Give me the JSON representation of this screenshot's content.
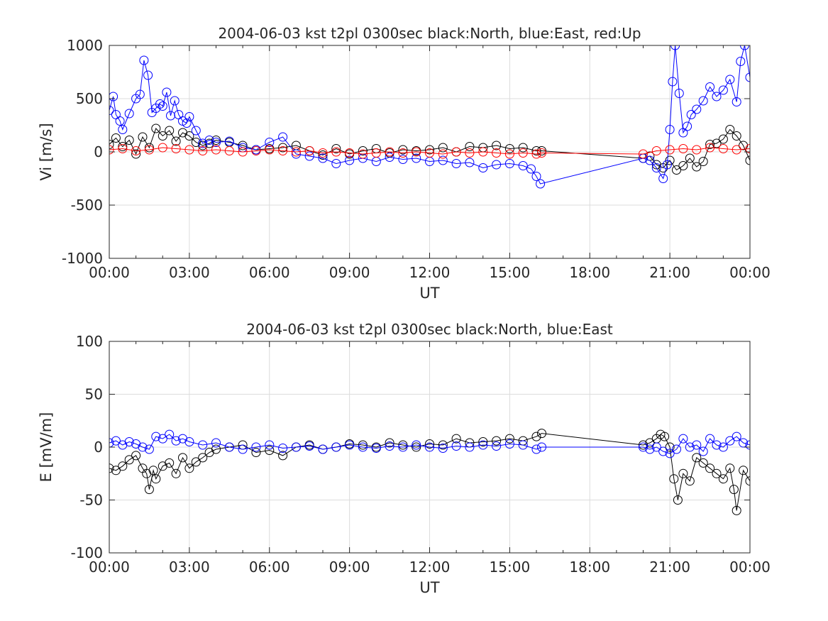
{
  "chart_data": [
    {
      "type": "line",
      "title": "2004-06-03 kst t2pl 0300sec black:North, blue:East, red:Up",
      "xlabel": "UT",
      "ylabel": "Vi [m/s]",
      "xlim": [
        0,
        24
      ],
      "ylim": [
        -1000,
        1000
      ],
      "xticks": [
        "00:00",
        "03:00",
        "06:00",
        "09:00",
        "12:00",
        "15:00",
        "18:00",
        "21:00",
        "00:00"
      ],
      "yticks": [
        "-1000",
        "-500",
        "0",
        "500",
        "1000"
      ],
      "grid": true,
      "marker": "circle",
      "colors": {
        "North": "#000000",
        "East": "#0000ff",
        "Up": "#ff0000"
      },
      "series": [
        {
          "name": "North",
          "x": [
            0.0,
            0.25,
            0.5,
            0.75,
            1.0,
            1.25,
            1.5,
            1.75,
            2.0,
            2.25,
            2.5,
            2.75,
            3.0,
            3.25,
            3.5,
            3.75,
            4.0,
            4.5,
            5.0,
            5.5,
            6.0,
            6.5,
            7.0,
            7.5,
            8.0,
            8.5,
            9.0,
            9.5,
            10.0,
            10.5,
            11.0,
            11.5,
            12.0,
            12.5,
            13.0,
            13.5,
            14.0,
            14.5,
            15.0,
            15.5,
            16.0,
            16.2,
            20.0,
            20.25,
            20.5,
            20.75,
            21.0,
            21.25,
            21.5,
            21.75,
            22.0,
            22.25,
            22.5,
            22.75,
            23.0,
            23.25,
            23.5,
            23.75,
            24.0
          ],
          "y": [
            70,
            130,
            50,
            110,
            -20,
            140,
            40,
            220,
            150,
            200,
            100,
            180,
            150,
            90,
            60,
            80,
            110,
            90,
            60,
            20,
            30,
            40,
            60,
            10,
            -30,
            30,
            -20,
            10,
            30,
            -10,
            20,
            10,
            20,
            40,
            0,
            50,
            40,
            60,
            30,
            40,
            10,
            10,
            -60,
            -40,
            -120,
            -150,
            -80,
            -170,
            -130,
            -60,
            -140,
            -90,
            70,
            80,
            120,
            210,
            150,
            60,
            -80
          ]
        },
        {
          "name": "East",
          "x": [
            0.0,
            0.15,
            0.25,
            0.4,
            0.5,
            0.75,
            1.0,
            1.15,
            1.3,
            1.45,
            1.6,
            1.75,
            1.9,
            2.0,
            2.15,
            2.3,
            2.45,
            2.6,
            2.75,
            2.9,
            3.0,
            3.25,
            3.5,
            3.75,
            4.0,
            4.5,
            5.0,
            5.5,
            6.0,
            6.5,
            7.0,
            7.5,
            8.0,
            8.5,
            9.0,
            9.5,
            10.0,
            10.5,
            11.0,
            11.5,
            12.0,
            12.5,
            13.0,
            13.5,
            14.0,
            14.5,
            15.0,
            15.5,
            15.8,
            16.0,
            16.15,
            20.0,
            20.25,
            20.5,
            20.75,
            20.9,
            21.0,
            21.1,
            21.2,
            21.35,
            21.5,
            21.65,
            21.8,
            22.0,
            22.25,
            22.5,
            22.75,
            23.0,
            23.25,
            23.5,
            23.65,
            23.8,
            24.0
          ],
          "y": [
            390,
            520,
            350,
            290,
            210,
            360,
            500,
            540,
            860,
            720,
            370,
            410,
            450,
            430,
            560,
            340,
            480,
            350,
            290,
            270,
            330,
            200,
            80,
            110,
            90,
            100,
            40,
            20,
            90,
            140,
            -20,
            -40,
            -60,
            -110,
            -80,
            -60,
            -90,
            -50,
            -70,
            -60,
            -90,
            -80,
            -110,
            -100,
            -150,
            -120,
            -110,
            -130,
            -160,
            -230,
            -300,
            -60,
            -80,
            -150,
            -250,
            -120,
            210,
            660,
            1000,
            550,
            180,
            240,
            350,
            400,
            480,
            610,
            520,
            580,
            680,
            470,
            850,
            1000,
            700
          ]
        },
        {
          "name": "Up",
          "x": [
            0.0,
            0.5,
            1.0,
            1.5,
            2.0,
            2.5,
            3.0,
            3.5,
            4.0,
            4.5,
            5.0,
            5.5,
            6.0,
            6.5,
            7.0,
            7.5,
            8.0,
            8.5,
            9.0,
            9.5,
            10.0,
            10.5,
            11.0,
            11.5,
            12.0,
            12.5,
            13.0,
            13.5,
            14.0,
            14.5,
            15.0,
            15.5,
            16.0,
            16.2,
            20.0,
            20.5,
            21.0,
            21.5,
            22.0,
            22.5,
            23.0,
            23.5,
            24.0
          ],
          "y": [
            20,
            30,
            10,
            20,
            40,
            30,
            20,
            10,
            20,
            10,
            0,
            10,
            20,
            10,
            0,
            10,
            -10,
            0,
            -10,
            -20,
            -10,
            0,
            -10,
            0,
            -10,
            -20,
            0,
            -10,
            0,
            -10,
            -20,
            -10,
            -20,
            -10,
            -20,
            10,
            20,
            30,
            20,
            40,
            30,
            20,
            30
          ]
        }
      ]
    },
    {
      "type": "line",
      "title": "2004-06-03 kst t2pl 0300sec black:North, blue:East",
      "xlabel": "UT",
      "ylabel": "E [mV/m]",
      "xlim": [
        0,
        24
      ],
      "ylim": [
        -100,
        100
      ],
      "xticks": [
        "00:00",
        "03:00",
        "06:00",
        "09:00",
        "12:00",
        "15:00",
        "18:00",
        "21:00",
        "00:00"
      ],
      "yticks": [
        "-100",
        "-50",
        "0",
        "50",
        "100"
      ],
      "grid": true,
      "marker": "circle",
      "colors": {
        "North": "#000000",
        "East": "#0000ff"
      },
      "series": [
        {
          "name": "North",
          "x": [
            0.0,
            0.25,
            0.5,
            0.75,
            1.0,
            1.25,
            1.4,
            1.5,
            1.65,
            1.75,
            2.0,
            2.25,
            2.5,
            2.75,
            3.0,
            3.25,
            3.5,
            3.75,
            4.0,
            4.5,
            5.0,
            5.5,
            6.0,
            6.5,
            7.0,
            7.5,
            8.0,
            8.5,
            9.0,
            9.5,
            10.0,
            10.5,
            11.0,
            11.5,
            12.0,
            12.5,
            13.0,
            13.5,
            14.0,
            14.5,
            15.0,
            15.5,
            16.0,
            16.2,
            20.0,
            20.25,
            20.5,
            20.65,
            20.8,
            21.0,
            21.15,
            21.3,
            21.5,
            21.75,
            22.0,
            22.25,
            22.5,
            22.75,
            23.0,
            23.25,
            23.4,
            23.5,
            23.75,
            24.0
          ],
          "y": [
            -20,
            -22,
            -18,
            -12,
            -8,
            -20,
            -25,
            -40,
            -22,
            -30,
            -18,
            -15,
            -25,
            -10,
            -20,
            -14,
            -10,
            -5,
            -2,
            0,
            2,
            -5,
            -3,
            -8,
            0,
            2,
            -2,
            0,
            3,
            2,
            0,
            4,
            2,
            0,
            3,
            2,
            8,
            4,
            5,
            6,
            8,
            6,
            10,
            13,
            2,
            4,
            8,
            12,
            10,
            0,
            -30,
            -50,
            -25,
            -32,
            -10,
            -15,
            -20,
            -25,
            -30,
            -20,
            -40,
            -60,
            -22,
            -32
          ]
        },
        {
          "name": "East",
          "x": [
            0.0,
            0.25,
            0.5,
            0.75,
            1.0,
            1.25,
            1.5,
            1.75,
            2.0,
            2.25,
            2.5,
            2.75,
            3.0,
            3.5,
            4.0,
            4.5,
            5.0,
            5.5,
            6.0,
            6.5,
            7.0,
            7.5,
            8.0,
            8.5,
            9.0,
            9.5,
            10.0,
            10.5,
            11.0,
            11.5,
            12.0,
            12.5,
            13.0,
            13.5,
            14.0,
            14.5,
            15.0,
            15.5,
            16.0,
            16.2,
            20.0,
            20.25,
            20.5,
            20.75,
            21.0,
            21.25,
            21.5,
            21.75,
            22.0,
            22.25,
            22.5,
            22.75,
            23.0,
            23.25,
            23.5,
            23.75,
            24.0
          ],
          "y": [
            4,
            6,
            2,
            5,
            3,
            0,
            -2,
            10,
            8,
            12,
            6,
            8,
            5,
            2,
            4,
            0,
            -2,
            0,
            2,
            -1,
            0,
            1,
            -2,
            0,
            2,
            0,
            -1,
            1,
            0,
            2,
            0,
            -1,
            1,
            0,
            2,
            1,
            3,
            2,
            -2,
            0,
            0,
            -2,
            0,
            -4,
            -6,
            -2,
            8,
            0,
            2,
            -4,
            8,
            2,
            0,
            6,
            10,
            4,
            2
          ]
        }
      ]
    }
  ]
}
